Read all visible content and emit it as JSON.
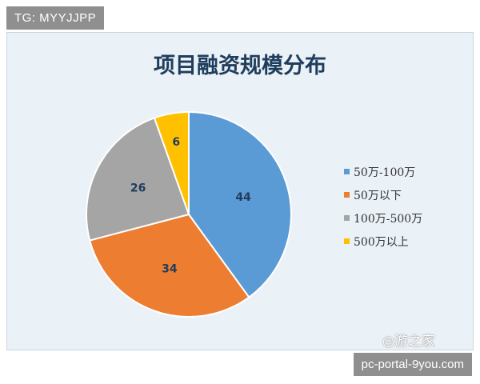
{
  "header_label": "TG: MYYJJPP",
  "footer_label": "pc-portal-9you.com",
  "watermark_brand": "◎游之家",
  "chart_data": {
    "type": "pie",
    "title": "项目融资规模分布",
    "legend_position": "right",
    "slices": [
      {
        "label": "50万-100万",
        "value": 44,
        "color": "#5b9bd5"
      },
      {
        "label": "50万以下",
        "value": 34,
        "color": "#ed7d31"
      },
      {
        "label": "100万-500万",
        "value": 26,
        "color": "#a5a5a5"
      },
      {
        "label": "500万以上",
        "value": 6,
        "color": "#ffc000"
      }
    ]
  }
}
